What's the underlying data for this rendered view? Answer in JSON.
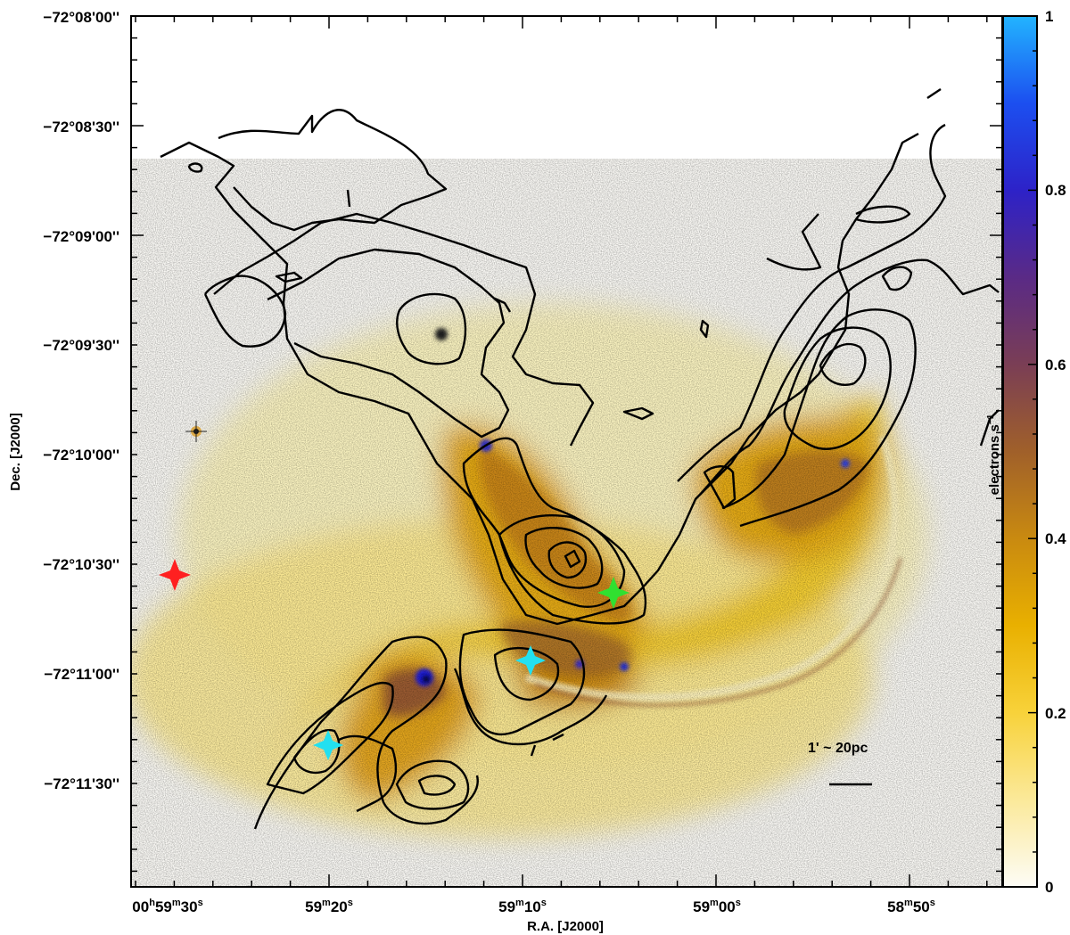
{
  "figure": {
    "dec_ticks": [
      "−72°08'00''",
      "−72°08'30''",
      "−72°09'00''",
      "−72°09'30''",
      "−72°10'00''",
      "−72°10'30''",
      "−72°11'00''",
      "−72°11'30''"
    ],
    "ra_ticks": [
      {
        "main": "00",
        "h": "h",
        "m_val": "59",
        "m": "m",
        "s_val": "30",
        "s": "s"
      },
      {
        "main": "",
        "h": "",
        "m_val": "59",
        "m": "m",
        "s_val": "20",
        "s": "s"
      },
      {
        "main": "",
        "h": "",
        "m_val": "59",
        "m": "m",
        "s_val": "10",
        "s": "s"
      },
      {
        "main": "",
        "h": "",
        "m_val": "59",
        "m": "m",
        "s_val": "00",
        "s": "s"
      },
      {
        "main": "",
        "h": "",
        "m_val": "58",
        "m": "m",
        "s_val": "50",
        "s": "s"
      }
    ],
    "xlabel": "R.A. [J2000]",
    "ylabel": "Dec. [J2000]",
    "colorbar": {
      "label": "electrons s",
      "label_exp": "−1",
      "ticks": [
        "1",
        "0.8",
        "0.6",
        "0.4",
        "0.2",
        "0"
      ],
      "colors": [
        "#fdfcf6",
        "#fbe99a",
        "#f8d23a",
        "#e9b000",
        "#c98a10",
        "#a0602a",
        "#7a3e55",
        "#5a2a86",
        "#2d22c8",
        "#1c4ff0",
        "#22b4ff"
      ]
    },
    "scale_bar": {
      "label": "1' ~ 20pc"
    },
    "markers": [
      {
        "name": "red-star",
        "color": "#ff2020"
      },
      {
        "name": "green-star",
        "color": "#30e030"
      },
      {
        "name": "cyan-star-1",
        "color": "#22e0f0"
      },
      {
        "name": "cyan-star-2",
        "color": "#22e0f0"
      }
    ]
  }
}
